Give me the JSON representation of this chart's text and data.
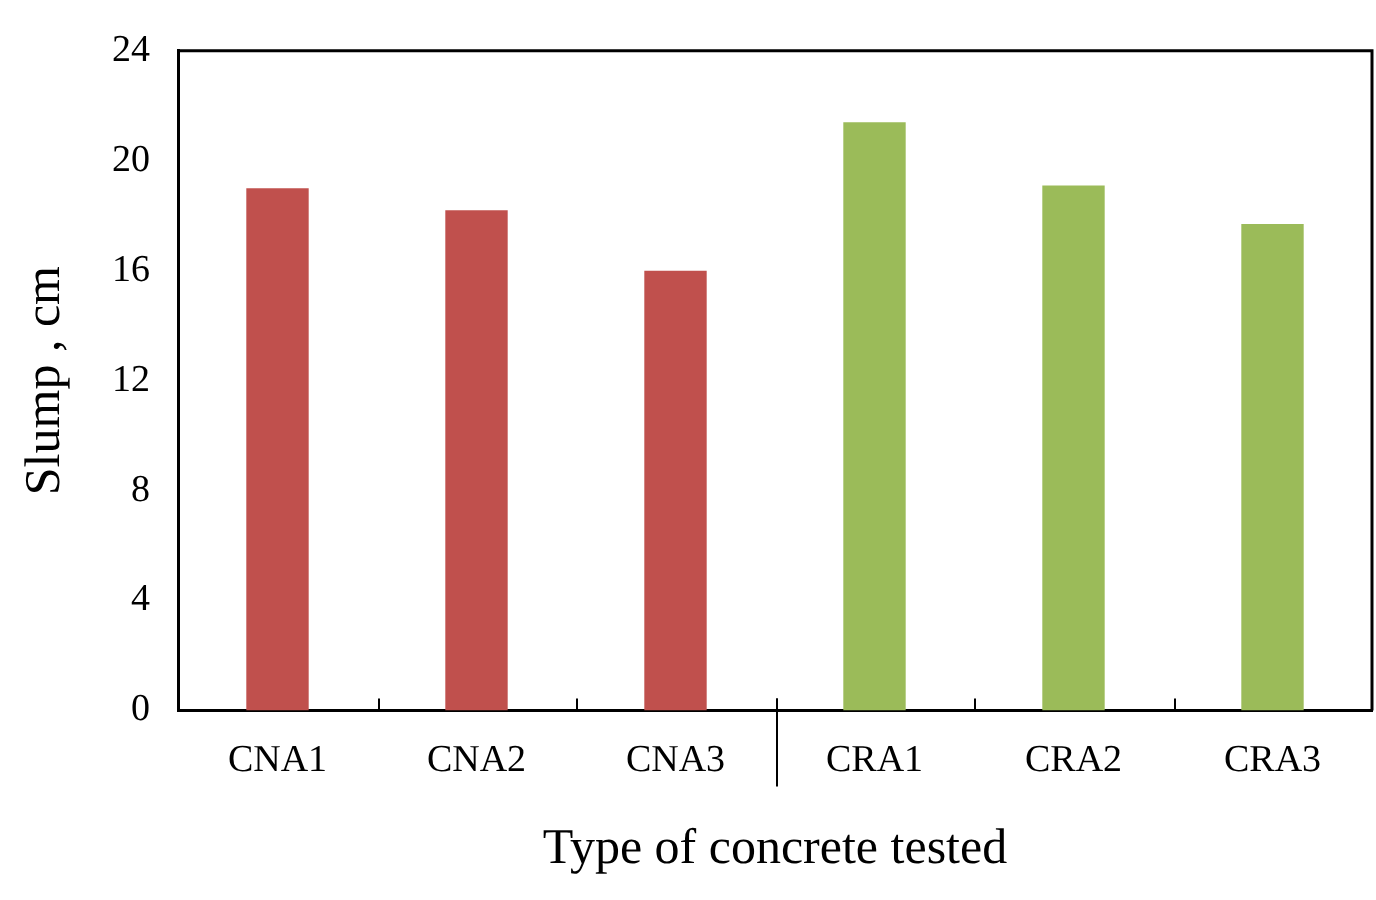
{
  "chart_data": {
    "type": "bar",
    "xlabel": "Type of concrete tested",
    "ylabel": "Slump , cm",
    "categories": [
      "CNA1",
      "CNA2",
      "CNA3",
      "CRA1",
      "CRA2",
      "CRA3"
    ],
    "values": [
      19.0,
      18.2,
      16.0,
      21.4,
      19.1,
      17.7
    ],
    "colors": [
      "#c0504d",
      "#c0504d",
      "#c0504d",
      "#9bbb59",
      "#9bbb59",
      "#9bbb59"
    ],
    "ylim": [
      0,
      24
    ],
    "yticks": [
      0,
      4,
      8,
      12,
      16,
      20,
      24
    ],
    "grid": false,
    "legend": false
  }
}
